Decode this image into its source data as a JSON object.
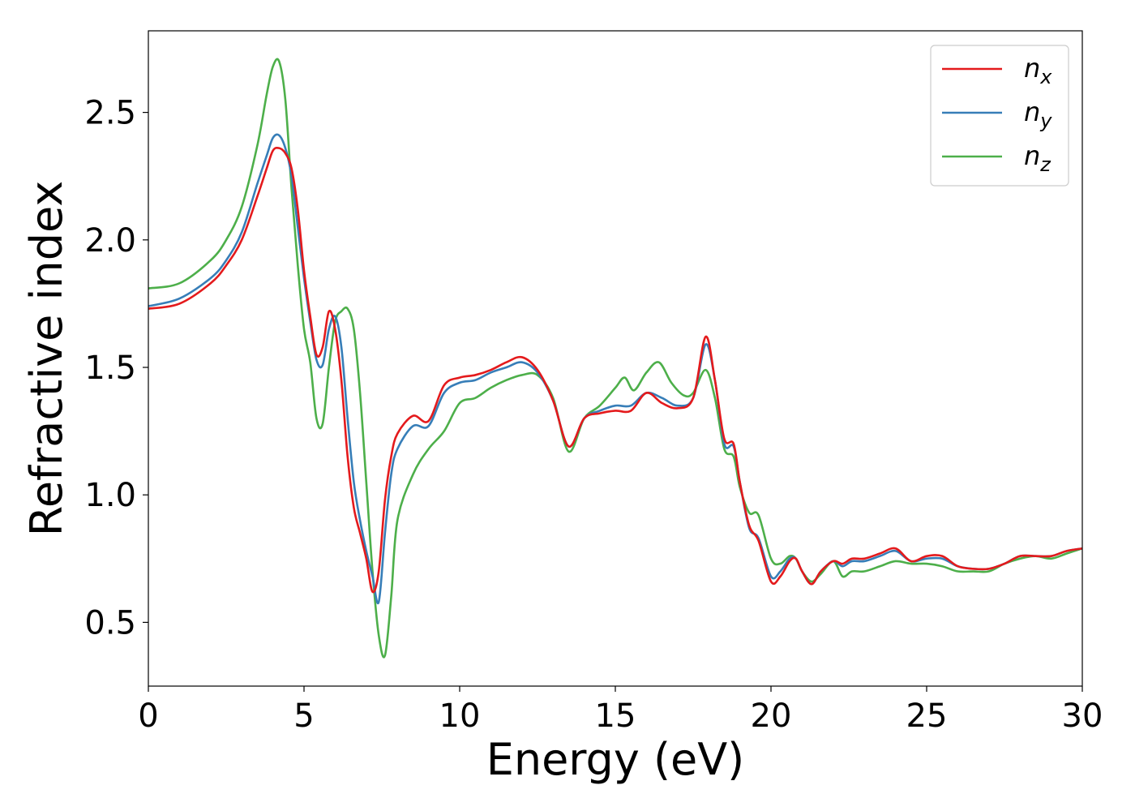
{
  "chart_data": {
    "type": "line",
    "title": "",
    "xlabel": "Energy (eV)",
    "ylabel": "Refractive index",
    "xlim": [
      0,
      30
    ],
    "ylim": [
      0.25,
      2.82
    ],
    "xticks": [
      0,
      5,
      10,
      15,
      20,
      25,
      30
    ],
    "xtick_labels": [
      "0",
      "5",
      "10",
      "15",
      "20",
      "25",
      "30"
    ],
    "yticks": [
      0.5,
      1.0,
      1.5,
      2.0,
      2.5
    ],
    "ytick_labels": [
      "0.5",
      "1.0",
      "1.5",
      "2.0",
      "2.5"
    ],
    "grid": false,
    "legend_position": "top-right",
    "series": [
      {
        "name": "n_x",
        "legend_base": "n",
        "legend_sub": "x",
        "color": "#e41a1c",
        "x": [
          0,
          1,
          2,
          2.5,
          3,
          3.5,
          3.8,
          4.0,
          4.2,
          4.4,
          4.6,
          4.8,
          5.0,
          5.2,
          5.4,
          5.6,
          5.8,
          6.0,
          6.2,
          6.4,
          6.6,
          6.8,
          7.0,
          7.2,
          7.4,
          7.6,
          7.8,
          8.0,
          8.5,
          9.0,
          9.5,
          10.0,
          10.5,
          11.0,
          11.5,
          12.0,
          12.5,
          13.0,
          13.5,
          14.0,
          14.5,
          15.0,
          15.5,
          16.0,
          16.5,
          17.0,
          17.5,
          17.9,
          18.2,
          18.5,
          18.8,
          19.0,
          19.3,
          19.6,
          20.0,
          20.3,
          20.6,
          20.8,
          21.0,
          21.3,
          21.6,
          22.0,
          22.3,
          22.6,
          23.0,
          23.5,
          24.0,
          24.5,
          25.0,
          25.5,
          26.0,
          26.5,
          27.0,
          27.5,
          28.0,
          28.5,
          29.0,
          29.5,
          30.0
        ],
        "y": [
          1.73,
          1.75,
          1.83,
          1.9,
          2.0,
          2.17,
          2.28,
          2.35,
          2.36,
          2.34,
          2.28,
          2.12,
          1.88,
          1.7,
          1.55,
          1.58,
          1.72,
          1.65,
          1.45,
          1.15,
          0.95,
          0.85,
          0.75,
          0.62,
          0.7,
          0.98,
          1.15,
          1.24,
          1.31,
          1.29,
          1.43,
          1.46,
          1.47,
          1.49,
          1.52,
          1.54,
          1.49,
          1.37,
          1.19,
          1.3,
          1.32,
          1.33,
          1.33,
          1.4,
          1.36,
          1.34,
          1.38,
          1.62,
          1.45,
          1.22,
          1.2,
          1.05,
          0.88,
          0.82,
          0.66,
          0.68,
          0.74,
          0.75,
          0.7,
          0.65,
          0.7,
          0.74,
          0.73,
          0.75,
          0.75,
          0.77,
          0.79,
          0.74,
          0.76,
          0.76,
          0.72,
          0.71,
          0.71,
          0.73,
          0.76,
          0.76,
          0.76,
          0.78,
          0.79
        ]
      },
      {
        "name": "n_y",
        "legend_base": "n",
        "legend_sub": "y",
        "color": "#377eb8",
        "x": [
          0,
          1,
          2,
          2.5,
          3,
          3.5,
          3.8,
          4.0,
          4.2,
          4.4,
          4.6,
          4.8,
          5.0,
          5.2,
          5.4,
          5.6,
          5.8,
          6.0,
          6.2,
          6.4,
          6.6,
          6.8,
          7.0,
          7.2,
          7.4,
          7.6,
          7.8,
          8.0,
          8.5,
          9.0,
          9.5,
          10.0,
          10.5,
          11.0,
          11.5,
          12.0,
          12.5,
          13.0,
          13.5,
          14.0,
          14.5,
          15.0,
          15.5,
          16.0,
          16.5,
          17.0,
          17.5,
          17.9,
          18.2,
          18.5,
          18.8,
          19.0,
          19.3,
          19.6,
          20.0,
          20.3,
          20.6,
          20.8,
          21.0,
          21.3,
          21.6,
          22.0,
          22.3,
          22.6,
          23.0,
          23.5,
          24.0,
          24.5,
          25.0,
          25.5,
          26.0,
          26.5,
          27.0,
          27.5,
          28.0,
          28.5,
          29.0,
          29.5,
          30.0
        ],
        "y": [
          1.74,
          1.77,
          1.85,
          1.92,
          2.03,
          2.22,
          2.33,
          2.4,
          2.41,
          2.36,
          2.25,
          2.05,
          1.85,
          1.68,
          1.53,
          1.51,
          1.65,
          1.7,
          1.58,
          1.3,
          1.05,
          0.9,
          0.78,
          0.68,
          0.58,
          0.85,
          1.08,
          1.18,
          1.27,
          1.27,
          1.4,
          1.44,
          1.45,
          1.48,
          1.5,
          1.52,
          1.48,
          1.37,
          1.19,
          1.3,
          1.33,
          1.35,
          1.35,
          1.4,
          1.38,
          1.35,
          1.38,
          1.59,
          1.45,
          1.2,
          1.19,
          1.05,
          0.87,
          0.83,
          0.68,
          0.7,
          0.75,
          0.75,
          0.7,
          0.65,
          0.7,
          0.74,
          0.72,
          0.74,
          0.74,
          0.76,
          0.78,
          0.74,
          0.75,
          0.75,
          0.72,
          0.71,
          0.71,
          0.73,
          0.76,
          0.76,
          0.76,
          0.78,
          0.79
        ]
      },
      {
        "name": "n_z",
        "legend_base": "n",
        "legend_sub": "z",
        "color": "#4daf4a",
        "x": [
          0,
          1,
          2,
          2.5,
          3,
          3.5,
          3.8,
          4.0,
          4.2,
          4.4,
          4.6,
          4.8,
          5.0,
          5.2,
          5.4,
          5.6,
          5.8,
          6.0,
          6.2,
          6.4,
          6.6,
          6.8,
          7.0,
          7.2,
          7.4,
          7.6,
          7.8,
          8.0,
          8.5,
          9.0,
          9.5,
          10.0,
          10.5,
          11.0,
          11.5,
          12.0,
          12.5,
          13.0,
          13.5,
          14.0,
          14.5,
          15.0,
          15.3,
          15.6,
          16.0,
          16.4,
          16.8,
          17.2,
          17.5,
          17.9,
          18.2,
          18.5,
          18.8,
          19.0,
          19.3,
          19.6,
          20.0,
          20.3,
          20.6,
          20.8,
          21.0,
          21.3,
          21.6,
          22.0,
          22.3,
          22.6,
          23.0,
          23.5,
          24.0,
          24.5,
          25.0,
          25.5,
          26.0,
          26.5,
          27.0,
          27.5,
          28.0,
          28.5,
          29.0,
          29.5,
          30.0
        ],
        "y": [
          1.81,
          1.83,
          1.92,
          2.0,
          2.13,
          2.37,
          2.57,
          2.68,
          2.7,
          2.55,
          2.2,
          1.9,
          1.65,
          1.52,
          1.3,
          1.28,
          1.5,
          1.68,
          1.72,
          1.73,
          1.65,
          1.4,
          1.05,
          0.7,
          0.45,
          0.37,
          0.6,
          0.9,
          1.08,
          1.18,
          1.25,
          1.36,
          1.38,
          1.42,
          1.45,
          1.47,
          1.47,
          1.38,
          1.17,
          1.3,
          1.35,
          1.42,
          1.46,
          1.41,
          1.48,
          1.52,
          1.44,
          1.39,
          1.4,
          1.49,
          1.38,
          1.18,
          1.15,
          1.03,
          0.93,
          0.92,
          0.75,
          0.73,
          0.76,
          0.75,
          0.7,
          0.66,
          0.69,
          0.74,
          0.68,
          0.7,
          0.7,
          0.72,
          0.74,
          0.73,
          0.73,
          0.72,
          0.7,
          0.7,
          0.7,
          0.73,
          0.75,
          0.76,
          0.75,
          0.77,
          0.79
        ]
      }
    ]
  }
}
